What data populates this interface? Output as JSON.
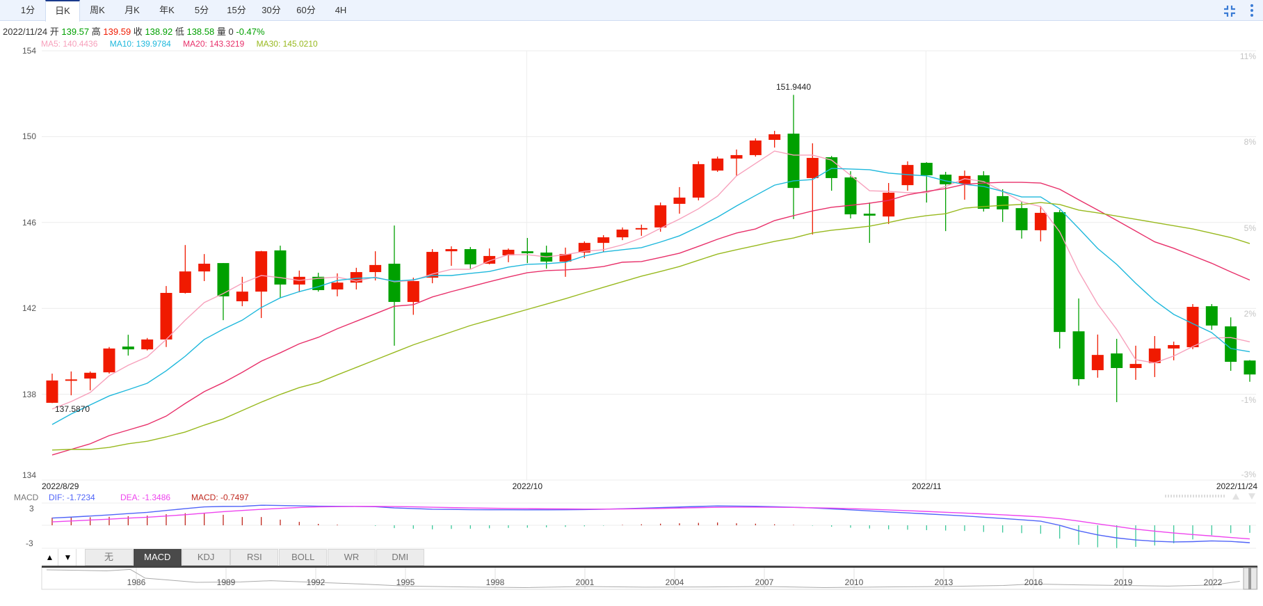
{
  "toolbar": {
    "tabs": [
      "1分",
      "日K",
      "周K",
      "月K",
      "年K",
      "5分",
      "15分",
      "30分",
      "60分",
      "4H"
    ],
    "active_tab": "日K",
    "icons": [
      "compress-icon",
      "more-vertical-icon"
    ]
  },
  "info": {
    "date": "2022/11/24",
    "open_label": "开",
    "open": "139.57",
    "high_label": "高",
    "high": "139.59",
    "close_label": "收",
    "close": "138.92",
    "low_label": "低",
    "low": "138.58",
    "volume_label": "量",
    "volume": "0",
    "change": "-0.47%"
  },
  "ma_legend": {
    "ma5": "MA5: 140.4436",
    "ma10": "MA10: 139.9784",
    "ma20": "MA20: 143.3219",
    "ma30": "MA30: 145.0210"
  },
  "colors": {
    "up": "#f01a00",
    "down": "#00a000",
    "ma5": "#f7a1bc",
    "ma10": "#1eb8dc",
    "ma20": "#e8306a",
    "ma30": "#98b91e",
    "dif": "#5064f8",
    "dea": "#ee44ee",
    "macd_up": "#c0281e",
    "macd_down": "#3cc89a",
    "accent": "#3a7bd5"
  },
  "chart_data": [
    {
      "type": "candlestick",
      "ylim": [
        134,
        154
      ],
      "y_ticks": [
        "154",
        "150",
        "146",
        "142",
        "138",
        "134"
      ],
      "y_ticks_right": [
        "11%",
        "8%",
        "5%",
        "2%",
        "-1%",
        "-3%"
      ],
      "x_labels": [
        {
          "index": 0,
          "label": "2022/8/29"
        },
        {
          "index": 25,
          "label": "2022/10"
        },
        {
          "index": 46,
          "label": "2022/11"
        },
        {
          "index": 63,
          "label": "2022/11/24"
        }
      ],
      "grid": true,
      "annotations": {
        "max": "151.9440",
        "max_index": 39,
        "min": "137.5870",
        "min_index": 0
      },
      "ohlc": [
        [
          137.6,
          138.96,
          137.587,
          138.64
        ],
        [
          138.65,
          139.06,
          137.95,
          138.69
        ],
        [
          138.73,
          139.06,
          138.18,
          139.0
        ],
        [
          139.02,
          140.2,
          138.96,
          140.13
        ],
        [
          140.22,
          140.77,
          139.8,
          140.09
        ],
        [
          140.09,
          140.62,
          140.04,
          140.55
        ],
        [
          140.55,
          143.04,
          140.2,
          142.72
        ],
        [
          142.72,
          144.95,
          142.69,
          143.72
        ],
        [
          143.72,
          144.53,
          143.27,
          144.08
        ],
        [
          144.11,
          144.11,
          141.45,
          142.56
        ],
        [
          142.33,
          143.47,
          142.1,
          142.78
        ],
        [
          142.78,
          144.68,
          141.55,
          144.66
        ],
        [
          144.7,
          144.92,
          142.49,
          143.11
        ],
        [
          143.11,
          143.76,
          142.75,
          143.47
        ],
        [
          143.47,
          143.66,
          142.78,
          142.85
        ],
        [
          142.88,
          143.63,
          142.56,
          143.2
        ],
        [
          143.2,
          143.89,
          142.88,
          143.69
        ],
        [
          143.69,
          144.66,
          143.3,
          144.02
        ],
        [
          144.08,
          145.86,
          140.26,
          142.3
        ],
        [
          142.3,
          143.43,
          141.7,
          143.27
        ],
        [
          143.43,
          144.76,
          143.17,
          144.63
        ],
        [
          144.66,
          144.89,
          143.98,
          144.76
        ],
        [
          144.76,
          144.86,
          143.85,
          144.05
        ],
        [
          144.08,
          144.79,
          144.05,
          144.44
        ],
        [
          144.47,
          144.79,
          144.15,
          144.73
        ],
        [
          144.66,
          145.28,
          144.11,
          144.57
        ],
        [
          144.6,
          144.92,
          143.85,
          144.18
        ],
        [
          144.18,
          144.83,
          143.47,
          144.53
        ],
        [
          144.6,
          145.12,
          144.34,
          145.05
        ],
        [
          145.05,
          145.41,
          144.63,
          145.31
        ],
        [
          145.31,
          145.77,
          145.18,
          145.67
        ],
        [
          145.7,
          145.9,
          145.38,
          145.74
        ],
        [
          145.77,
          146.93,
          145.57,
          146.8
        ],
        [
          146.87,
          147.65,
          146.41,
          147.16
        ],
        [
          147.16,
          148.85,
          147.03,
          148.72
        ],
        [
          148.42,
          149.07,
          148.36,
          148.98
        ],
        [
          148.98,
          149.4,
          148.17,
          149.14
        ],
        [
          149.14,
          149.92,
          149.07,
          149.82
        ],
        [
          149.85,
          150.27,
          149.49,
          150.11
        ],
        [
          150.14,
          151.944,
          146.16,
          147.61
        ],
        [
          148.07,
          149.69,
          145.44,
          149.01
        ],
        [
          149.04,
          149.1,
          147.48,
          148.07
        ],
        [
          148.1,
          148.39,
          146.19,
          146.38
        ],
        [
          146.41,
          146.93,
          145.05,
          146.32
        ],
        [
          146.28,
          147.84,
          145.93,
          147.39
        ],
        [
          147.74,
          148.85,
          147.48,
          148.68
        ],
        [
          148.78,
          148.81,
          146.93,
          148.2
        ],
        [
          148.23,
          148.36,
          145.6,
          147.78
        ],
        [
          147.81,
          148.42,
          147.06,
          148.17
        ],
        [
          148.2,
          148.39,
          146.51,
          146.64
        ],
        [
          147.23,
          147.55,
          146.03,
          146.61
        ],
        [
          146.67,
          146.97,
          145.25,
          145.64
        ],
        [
          145.64,
          146.77,
          145.12,
          146.45
        ],
        [
          146.48,
          146.58,
          140.13,
          140.9
        ],
        [
          140.93,
          142.46,
          138.4,
          138.7
        ],
        [
          139.12,
          140.78,
          138.77,
          139.83
        ],
        [
          139.9,
          140.58,
          137.63,
          139.22
        ],
        [
          139.22,
          140.26,
          138.67,
          139.41
        ],
        [
          139.45,
          140.71,
          138.8,
          140.13
        ],
        [
          140.13,
          140.45,
          139.58,
          140.29
        ],
        [
          140.19,
          142.2,
          140.1,
          142.07
        ],
        [
          142.1,
          142.2,
          141.0,
          141.2
        ],
        [
          141.16,
          141.58,
          139.09,
          139.51
        ],
        [
          139.57,
          139.59,
          138.58,
          138.92
        ]
      ],
      "series": [
        {
          "name": "MA5",
          "values": [
            137.31,
            137.66,
            138.08,
            138.86,
            139.35,
            139.74,
            140.55,
            141.45,
            142.27,
            142.69,
            143.17,
            143.53,
            143.43,
            143.3,
            143.4,
            143.46,
            143.27,
            143.46,
            143.24,
            143.3,
            143.6,
            143.82,
            143.82,
            144.21,
            144.5,
            144.5,
            144.4,
            144.5,
            144.66,
            144.73,
            144.96,
            145.28,
            145.73,
            146.16,
            146.64,
            147.23,
            148.17,
            148.75,
            149.33,
            149.14,
            149.14,
            148.91,
            148.2,
            147.48,
            147.45,
            147.39,
            147.39,
            147.68,
            148.04,
            147.91,
            147.45,
            146.97,
            146.74,
            145.57,
            143.72,
            142.2,
            141.02,
            139.61,
            139.46,
            139.78,
            140.22,
            140.62,
            140.64,
            140.44
          ]
        },
        {
          "name": "MA10",
          "values": [
            136.59,
            137.08,
            137.5,
            137.92,
            138.21,
            138.51,
            139.09,
            139.77,
            140.55,
            141.03,
            141.45,
            142.04,
            142.49,
            142.78,
            143.01,
            143.3,
            143.4,
            143.43,
            143.27,
            143.33,
            143.53,
            143.53,
            143.63,
            143.72,
            143.92,
            144.05,
            144.08,
            144.15,
            144.44,
            144.63,
            144.73,
            144.83,
            145.09,
            145.38,
            145.8,
            146.25,
            146.77,
            147.26,
            147.74,
            147.94,
            148.0,
            148.52,
            148.49,
            148.46,
            148.3,
            148.23,
            148.17,
            147.94,
            147.78,
            147.68,
            147.45,
            147.19,
            147.19,
            146.64,
            145.73,
            144.79,
            144.05,
            143.17,
            142.36,
            141.72,
            141.29,
            140.87,
            140.13,
            139.98
          ]
        },
        {
          "name": "MA20",
          "values": [
            135.17,
            135.43,
            135.69,
            136.07,
            136.33,
            136.59,
            136.98,
            137.57,
            138.12,
            138.54,
            139.02,
            139.54,
            139.93,
            140.35,
            140.65,
            141.05,
            141.4,
            141.75,
            142.1,
            142.17,
            142.53,
            142.78,
            143.01,
            143.24,
            143.46,
            143.66,
            143.76,
            143.79,
            143.85,
            143.95,
            144.15,
            144.18,
            144.37,
            144.57,
            144.89,
            145.22,
            145.51,
            145.7,
            146.09,
            146.32,
            146.54,
            146.71,
            146.8,
            146.9,
            147.03,
            147.29,
            147.45,
            147.58,
            147.78,
            147.84,
            147.87,
            147.87,
            147.84,
            147.55,
            147.06,
            146.58,
            146.1,
            145.6,
            145.1,
            144.8,
            144.45,
            144.1,
            143.7,
            143.32
          ]
        },
        {
          "name": "MA30",
          "values": [
            135.4,
            135.43,
            135.43,
            135.52,
            135.69,
            135.81,
            136.01,
            136.24,
            136.56,
            136.85,
            137.24,
            137.63,
            137.99,
            138.31,
            138.54,
            138.9,
            139.25,
            139.6,
            139.95,
            140.3,
            140.6,
            140.9,
            141.2,
            141.45,
            141.7,
            141.95,
            142.2,
            142.45,
            142.72,
            142.98,
            143.24,
            143.5,
            143.72,
            143.95,
            144.24,
            144.53,
            144.73,
            144.92,
            145.12,
            145.28,
            145.51,
            145.64,
            145.73,
            145.83,
            146.0,
            146.19,
            146.32,
            146.41,
            146.67,
            146.74,
            146.8,
            146.84,
            146.93,
            146.84,
            146.58,
            146.45,
            146.3,
            146.15,
            146.0,
            145.85,
            145.7,
            145.5,
            145.3,
            145.02
          ]
        }
      ]
    },
    {
      "type": "line",
      "title_label": "MACD",
      "legend": {
        "dif": "DIF: -1.7234",
        "dea": "DEA: -1.3486",
        "macd": "MACD: -0.7497"
      },
      "y_ticks": [
        "3",
        "-3"
      ],
      "series": [
        {
          "name": "DIF",
          "values": [
            0.72,
            0.81,
            0.92,
            1.03,
            1.16,
            1.28,
            1.47,
            1.65,
            1.82,
            1.87,
            1.88,
            1.99,
            1.96,
            1.93,
            1.89,
            1.88,
            1.87,
            1.84,
            1.72,
            1.66,
            1.59,
            1.57,
            1.55,
            1.54,
            1.54,
            1.53,
            1.53,
            1.54,
            1.56,
            1.59,
            1.64,
            1.69,
            1.75,
            1.81,
            1.87,
            1.92,
            1.9,
            1.88,
            1.84,
            1.79,
            1.72,
            1.63,
            1.53,
            1.43,
            1.32,
            1.23,
            1.13,
            1.03,
            0.93,
            0.8,
            0.68,
            0.55,
            0.41,
            0.0,
            -0.55,
            -0.95,
            -1.25,
            -1.45,
            -1.58,
            -1.65,
            -1.62,
            -1.55,
            -1.6,
            -1.7234
          ]
        },
        {
          "name": "DEA",
          "values": [
            0.34,
            0.43,
            0.52,
            0.61,
            0.71,
            0.8,
            0.92,
            1.05,
            1.2,
            1.35,
            1.47,
            1.58,
            1.68,
            1.76,
            1.82,
            1.85,
            1.87,
            1.87,
            1.86,
            1.83,
            1.79,
            1.75,
            1.72,
            1.69,
            1.67,
            1.65,
            1.63,
            1.62,
            1.61,
            1.61,
            1.62,
            1.64,
            1.67,
            1.71,
            1.75,
            1.78,
            1.8,
            1.8,
            1.79,
            1.77,
            1.74,
            1.7,
            1.65,
            1.59,
            1.52,
            1.45,
            1.37,
            1.29,
            1.21,
            1.13,
            1.04,
            0.94,
            0.83,
            0.66,
            0.42,
            0.14,
            -0.12,
            -0.38,
            -0.58,
            -0.76,
            -0.92,
            -1.06,
            -1.21,
            -1.3486
          ]
        }
      ]
    }
  ],
  "indicator_tabs": {
    "up": "▲",
    "down": "▼",
    "tabs": [
      "无",
      "MACD",
      "KDJ",
      "RSI",
      "BOLL",
      "WR",
      "DMI"
    ],
    "active": "MACD"
  },
  "navigator": {
    "years": [
      "1986",
      "1989",
      "1992",
      "1995",
      "1998",
      "2001",
      "2004",
      "2007",
      "2010",
      "2013",
      "2016",
      "2019",
      "2022"
    ],
    "history": [
      [
        1983,
        0.9
      ],
      [
        1984,
        0.88
      ],
      [
        1985,
        0.85
      ],
      [
        1985.8,
        0.92
      ],
      [
        1986.3,
        0.5
      ],
      [
        1987,
        0.42
      ],
      [
        1988,
        0.3
      ],
      [
        1989.5,
        0.32
      ],
      [
        1990.5,
        0.38
      ],
      [
        1992,
        0.3
      ],
      [
        1993.5,
        0.22
      ],
      [
        1995,
        0.12
      ],
      [
        1997,
        0.08
      ],
      [
        1999,
        0.05
      ],
      [
        2001,
        0.1
      ],
      [
        2003,
        0.07
      ],
      [
        2005,
        0.08
      ],
      [
        2007,
        0.1
      ],
      [
        2009,
        0.05
      ],
      [
        2011,
        0.08
      ],
      [
        2013,
        0.1
      ],
      [
        2015,
        0.15
      ],
      [
        2016,
        0.22
      ],
      [
        2017.5,
        0.18
      ],
      [
        2019,
        0.15
      ],
      [
        2020.5,
        0.12
      ],
      [
        2022,
        0.17
      ],
      [
        2022.9,
        0.35
      ]
    ]
  }
}
